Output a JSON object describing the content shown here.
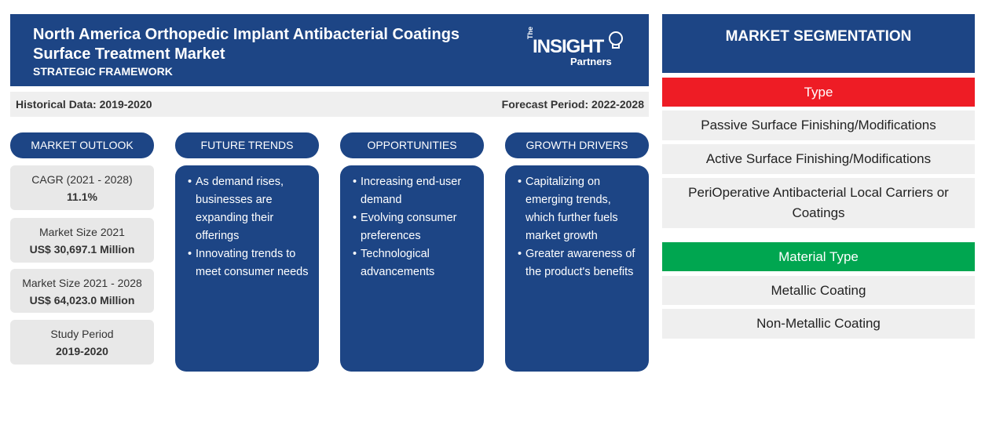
{
  "header": {
    "title": "North America Orthopedic Implant Antibacterial Coatings Surface Treatment Market",
    "subtitle": "STRATEGIC FRAMEWORK",
    "logo": {
      "the": "The",
      "insight": "INSIGHT",
      "partners": "Partners"
    }
  },
  "period": {
    "historical": "Historical Data: 2019-2020",
    "forecast": "Forecast Period: 2022-2028"
  },
  "columns": {
    "outlook": "MARKET OUTLOOK",
    "trends": "FUTURE TRENDS",
    "opportunities": "OPPORTUNITIES",
    "drivers": "GROWTH DRIVERS"
  },
  "outlook": [
    {
      "label": "CAGR (2021 - 2028)",
      "value": "11.1%"
    },
    {
      "label": "Market Size 2021",
      "value": "US$ 30,697.1 Million"
    },
    {
      "label": "Market Size 2021 - 2028",
      "value": "US$ 64,023.0 Million"
    },
    {
      "label": "Study Period",
      "value": "2019-2020"
    }
  ],
  "trends": [
    "As demand rises, businesses are expanding their offerings",
    "Innovating trends to meet consumer needs"
  ],
  "opportunities": [
    "Increasing end-user demand",
    "Evolving consumer preferences",
    "Technological advancements"
  ],
  "drivers": [
    "Capitalizing on emerging trends, which further fuels market growth",
    "Greater awareness of the product's benefits"
  ],
  "segmentation": {
    "title": "MARKET SEGMENTATION",
    "type_label": "Type",
    "type_color": "#ee1c25",
    "types": [
      "Passive Surface Finishing/Modifications",
      "Active Surface Finishing/Modifications",
      "PeriOperative Antibacterial Local Carriers or Coatings"
    ],
    "material_label": "Material Type",
    "material_color": "#00a650",
    "materials": [
      "Metallic Coating",
      "Non-Metallic Coating"
    ]
  }
}
